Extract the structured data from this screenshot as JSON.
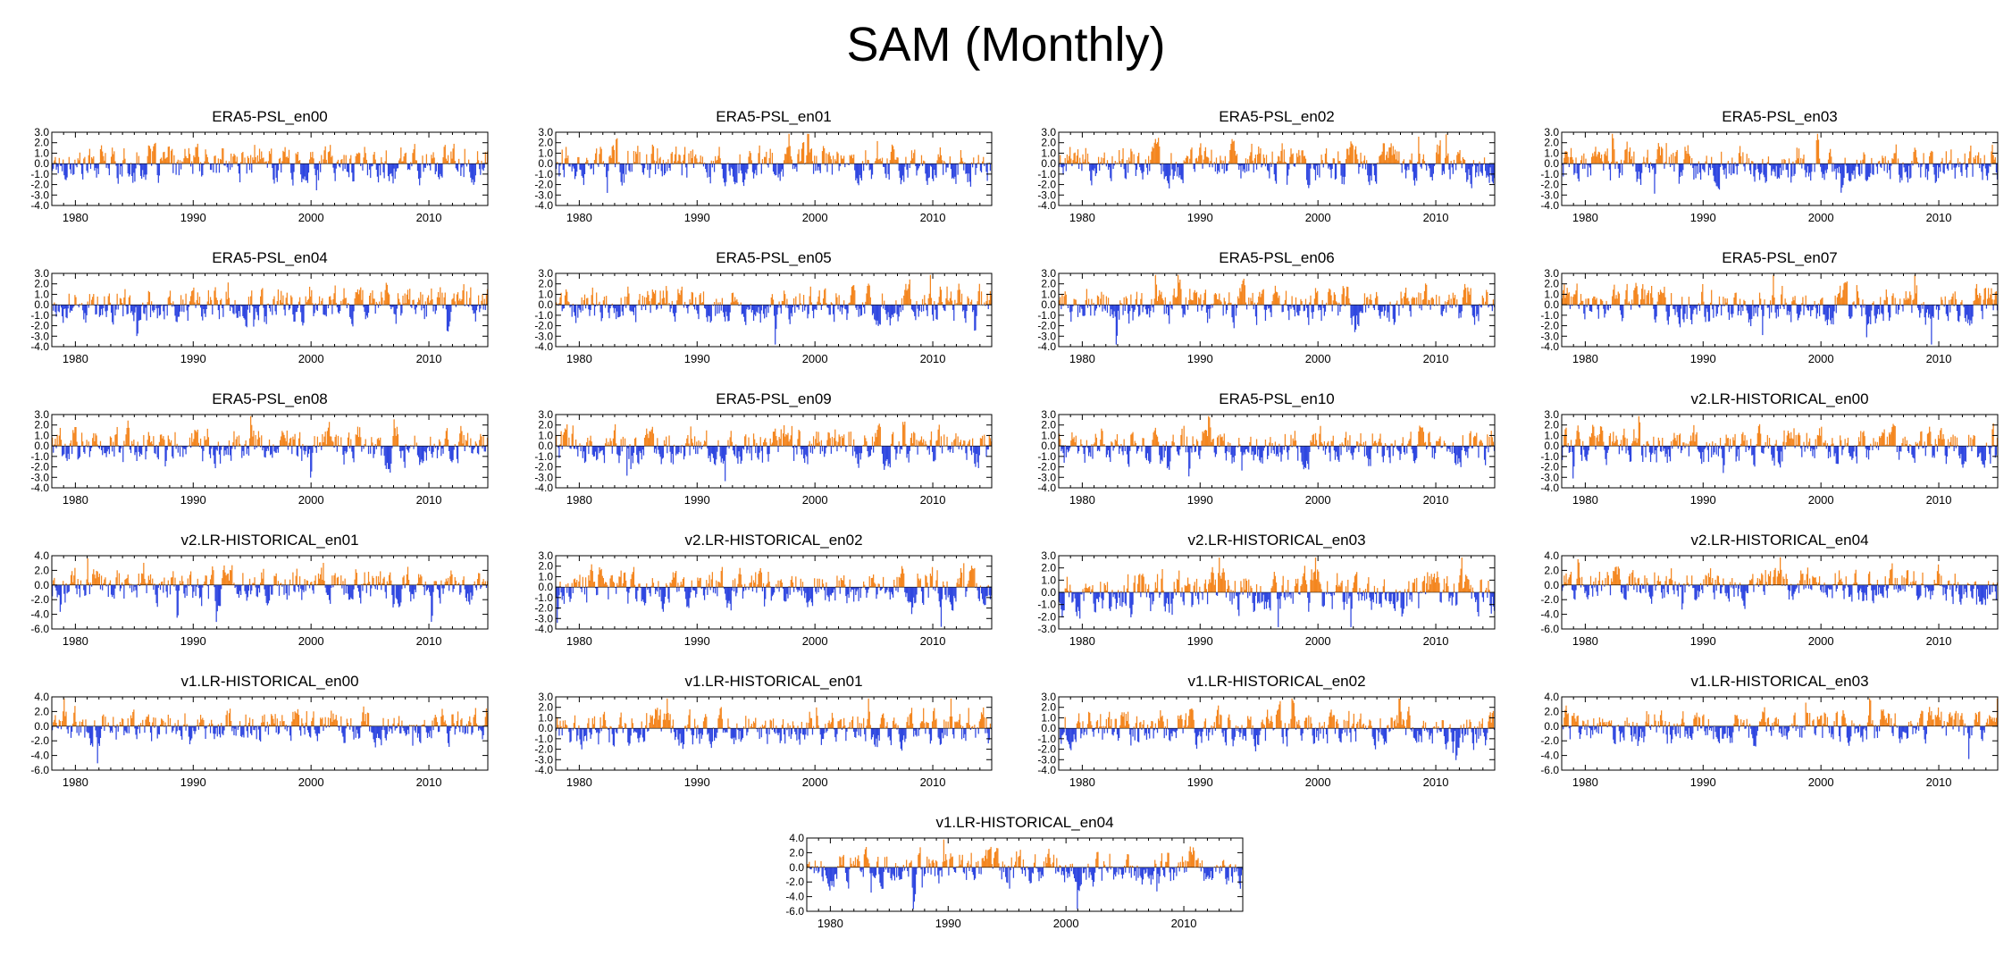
{
  "title": "SAM (Monthly)",
  "colors": {
    "positive": "#f4861f",
    "negative": "#2f47e0",
    "axis": "#000000"
  },
  "chart_data": [
    {
      "type": "bar",
      "title": "ERA5-PSL_en00",
      "x_range": [
        1978,
        2015
      ],
      "ylim": [
        -4.0,
        3.0
      ],
      "yticks": [
        "3.0",
        "2.0",
        "1.0",
        "0.0",
        "-1.0",
        "-2.0",
        "-3.0",
        "-4.0"
      ],
      "xticks": [
        "1980",
        "1990",
        "2000",
        "2010"
      ]
    },
    {
      "type": "bar",
      "title": "ERA5-PSL_en01",
      "x_range": [
        1978,
        2015
      ],
      "ylim": [
        -4.0,
        3.0
      ],
      "yticks": [
        "3.0",
        "2.0",
        "1.0",
        "0.0",
        "-1.0",
        "-2.0",
        "-3.0",
        "-4.0"
      ],
      "xticks": [
        "1980",
        "1990",
        "2000",
        "2010"
      ]
    },
    {
      "type": "bar",
      "title": "ERA5-PSL_en02",
      "x_range": [
        1978,
        2015
      ],
      "ylim": [
        -4.0,
        3.0
      ],
      "yticks": [
        "3.0",
        "2.0",
        "1.0",
        "0.0",
        "-1.0",
        "-2.0",
        "-3.0",
        "-4.0"
      ],
      "xticks": [
        "1980",
        "1990",
        "2000",
        "2010"
      ]
    },
    {
      "type": "bar",
      "title": "ERA5-PSL_en03",
      "x_range": [
        1978,
        2015
      ],
      "ylim": [
        -4.0,
        3.0
      ],
      "yticks": [
        "3.0",
        "2.0",
        "1.0",
        "0.0",
        "-1.0",
        "-2.0",
        "-3.0",
        "-4.0"
      ],
      "xticks": [
        "1980",
        "1990",
        "2000",
        "2010"
      ]
    },
    {
      "type": "bar",
      "title": "ERA5-PSL_en04",
      "x_range": [
        1978,
        2015
      ],
      "ylim": [
        -4.0,
        3.0
      ],
      "yticks": [
        "3.0",
        "2.0",
        "1.0",
        "0.0",
        "-1.0",
        "-2.0",
        "-3.0",
        "-4.0"
      ],
      "xticks": [
        "1980",
        "1990",
        "2000",
        "2010"
      ]
    },
    {
      "type": "bar",
      "title": "ERA5-PSL_en05",
      "x_range": [
        1978,
        2015
      ],
      "ylim": [
        -4.0,
        3.0
      ],
      "yticks": [
        "3.0",
        "2.0",
        "1.0",
        "0.0",
        "-1.0",
        "-2.0",
        "-3.0",
        "-4.0"
      ],
      "xticks": [
        "1980",
        "1990",
        "2000",
        "2010"
      ]
    },
    {
      "type": "bar",
      "title": "ERA5-PSL_en06",
      "x_range": [
        1978,
        2015
      ],
      "ylim": [
        -4.0,
        3.0
      ],
      "yticks": [
        "3.0",
        "2.0",
        "1.0",
        "0.0",
        "-1.0",
        "-2.0",
        "-3.0",
        "-4.0"
      ],
      "xticks": [
        "1980",
        "1990",
        "2000",
        "2010"
      ]
    },
    {
      "type": "bar",
      "title": "ERA5-PSL_en07",
      "x_range": [
        1978,
        2015
      ],
      "ylim": [
        -4.0,
        3.0
      ],
      "yticks": [
        "3.0",
        "2.0",
        "1.0",
        "0.0",
        "-1.0",
        "-2.0",
        "-3.0",
        "-4.0"
      ],
      "xticks": [
        "1980",
        "1990",
        "2000",
        "2010"
      ]
    },
    {
      "type": "bar",
      "title": "ERA5-PSL_en08",
      "x_range": [
        1978,
        2015
      ],
      "ylim": [
        -4.0,
        3.0
      ],
      "yticks": [
        "3.0",
        "2.0",
        "1.0",
        "0.0",
        "-1.0",
        "-2.0",
        "-3.0",
        "-4.0"
      ],
      "xticks": [
        "1980",
        "1990",
        "2000",
        "2010"
      ]
    },
    {
      "type": "bar",
      "title": "ERA5-PSL_en09",
      "x_range": [
        1978,
        2015
      ],
      "ylim": [
        -4.0,
        3.0
      ],
      "yticks": [
        "3.0",
        "2.0",
        "1.0",
        "0.0",
        "-1.0",
        "-2.0",
        "-3.0",
        "-4.0"
      ],
      "xticks": [
        "1980",
        "1990",
        "2000",
        "2010"
      ]
    },
    {
      "type": "bar",
      "title": "ERA5-PSL_en10",
      "x_range": [
        1978,
        2015
      ],
      "ylim": [
        -4.0,
        3.0
      ],
      "yticks": [
        "3.0",
        "2.0",
        "1.0",
        "0.0",
        "-1.0",
        "-2.0",
        "-3.0",
        "-4.0"
      ],
      "xticks": [
        "1980",
        "1990",
        "2000",
        "2010"
      ]
    },
    {
      "type": "bar",
      "title": "v2.LR-HISTORICAL_en00",
      "x_range": [
        1978,
        2015
      ],
      "ylim": [
        -4.0,
        3.0
      ],
      "yticks": [
        "3.0",
        "2.0",
        "1.0",
        "0.0",
        "-1.0",
        "-2.0",
        "-3.0",
        "-4.0"
      ],
      "xticks": [
        "1980",
        "1990",
        "2000",
        "2010"
      ]
    },
    {
      "type": "bar",
      "title": "v2.LR-HISTORICAL_en01",
      "x_range": [
        1978,
        2015
      ],
      "ylim": [
        -6.0,
        4.0
      ],
      "yticks": [
        "4.0",
        "2.0",
        "0.0",
        "-2.0",
        "-4.0",
        "-6.0"
      ],
      "xticks": [
        "1980",
        "1990",
        "2000",
        "2010"
      ]
    },
    {
      "type": "bar",
      "title": "v2.LR-HISTORICAL_en02",
      "x_range": [
        1978,
        2015
      ],
      "ylim": [
        -4.0,
        3.0
      ],
      "yticks": [
        "3.0",
        "2.0",
        "1.0",
        "0.0",
        "-1.0",
        "-2.0",
        "-3.0",
        "-4.0"
      ],
      "xticks": [
        "1980",
        "1990",
        "2000",
        "2010"
      ]
    },
    {
      "type": "bar",
      "title": "v2.LR-HISTORICAL_en03",
      "x_range": [
        1978,
        2015
      ],
      "ylim": [
        -3.0,
        3.0
      ],
      "yticks": [
        "3.0",
        "2.0",
        "1.0",
        "0.0",
        "-1.0",
        "-2.0",
        "-3.0"
      ],
      "xticks": [
        "1980",
        "1990",
        "2000",
        "2010"
      ]
    },
    {
      "type": "bar",
      "title": "v2.LR-HISTORICAL_en04",
      "x_range": [
        1978,
        2015
      ],
      "ylim": [
        -6.0,
        4.0
      ],
      "yticks": [
        "4.0",
        "2.0",
        "0.0",
        "-2.0",
        "-4.0",
        "-6.0"
      ],
      "xticks": [
        "1980",
        "1990",
        "2000",
        "2010"
      ]
    },
    {
      "type": "bar",
      "title": "v1.LR-HISTORICAL_en00",
      "x_range": [
        1978,
        2015
      ],
      "ylim": [
        -6.0,
        4.0
      ],
      "yticks": [
        "4.0",
        "2.0",
        "0.0",
        "-2.0",
        "-4.0",
        "-6.0"
      ],
      "xticks": [
        "1980",
        "1990",
        "2000",
        "2010"
      ]
    },
    {
      "type": "bar",
      "title": "v1.LR-HISTORICAL_en01",
      "x_range": [
        1978,
        2015
      ],
      "ylim": [
        -4.0,
        3.0
      ],
      "yticks": [
        "3.0",
        "2.0",
        "1.0",
        "0.0",
        "-1.0",
        "-2.0",
        "-3.0",
        "-4.0"
      ],
      "xticks": [
        "1980",
        "1990",
        "2000",
        "2010"
      ]
    },
    {
      "type": "bar",
      "title": "v1.LR-HISTORICAL_en02",
      "x_range": [
        1978,
        2015
      ],
      "ylim": [
        -4.0,
        3.0
      ],
      "yticks": [
        "3.0",
        "2.0",
        "1.0",
        "0.0",
        "-1.0",
        "-2.0",
        "-3.0",
        "-4.0"
      ],
      "xticks": [
        "1980",
        "1990",
        "2000",
        "2010"
      ]
    },
    {
      "type": "bar",
      "title": "v1.LR-HISTORICAL_en03",
      "x_range": [
        1978,
        2015
      ],
      "ylim": [
        -6.0,
        4.0
      ],
      "yticks": [
        "4.0",
        "2.0",
        "0.0",
        "-2.0",
        "-4.0",
        "-6.0"
      ],
      "xticks": [
        "1980",
        "1990",
        "2000",
        "2010"
      ]
    },
    {
      "type": "bar",
      "title": "v1.LR-HISTORICAL_en04",
      "x_range": [
        1978,
        2015
      ],
      "ylim": [
        -6.0,
        4.0
      ],
      "yticks": [
        "4.0",
        "2.0",
        "0.0",
        "-2.0",
        "-4.0",
        "-6.0"
      ],
      "xticks": [
        "1980",
        "1990",
        "2000",
        "2010"
      ]
    }
  ]
}
